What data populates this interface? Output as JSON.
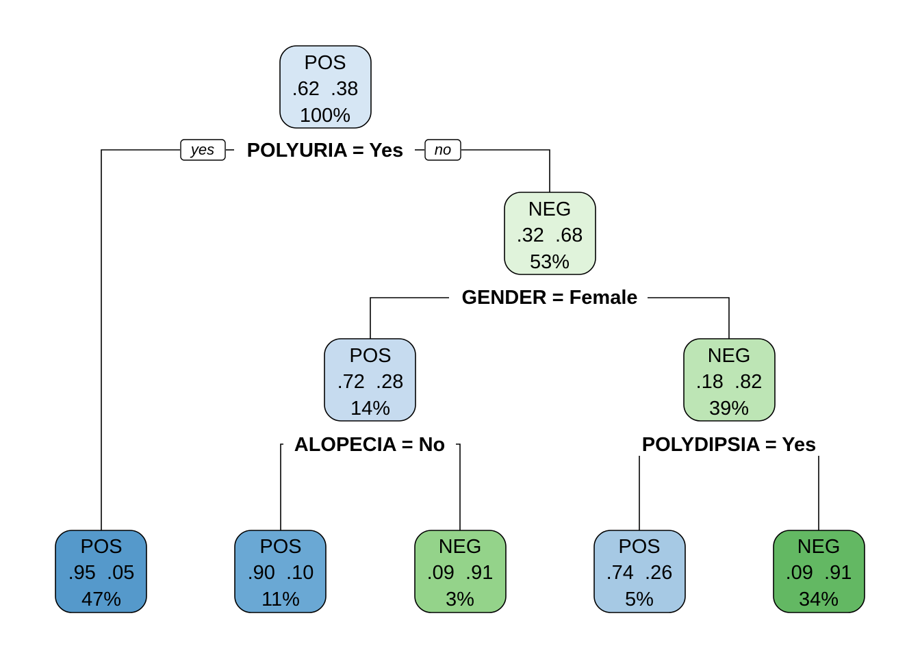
{
  "colors": {
    "pos_levels": [
      "#d6e6f4",
      "#c6dbef",
      "#a6c9e4",
      "#6aa8d4",
      "#5599cb"
    ],
    "neg_levels": [
      "#e0f3db",
      "#bde5b5",
      "#94d38a",
      "#63b863"
    ]
  },
  "root": {
    "label": "POS",
    "probs": ".62  .38",
    "pct": "100%",
    "split": "POLYURIA = Yes",
    "branch_yes": "yes",
    "branch_no": "no"
  },
  "nodes": {
    "leaf_1": {
      "label": "POS",
      "probs": ".95  .05",
      "pct": "47%"
    },
    "n_right": {
      "label": "NEG",
      "probs": ".32  .68",
      "pct": "53%",
      "split": "GENDER = Female"
    },
    "n_female": {
      "label": "POS",
      "probs": ".72  .28",
      "pct": "14%",
      "split": "ALOPECIA = No"
    },
    "n_male": {
      "label": "NEG",
      "probs": ".18  .82",
      "pct": "39%",
      "split": "POLYDIPSIA = Yes"
    },
    "leaf_2": {
      "label": "POS",
      "probs": ".90  .10",
      "pct": "11%"
    },
    "leaf_3": {
      "label": "NEG",
      "probs": ".09  .91",
      "pct": "3%"
    },
    "leaf_4": {
      "label": "POS",
      "probs": ".74  .26",
      "pct": "5%"
    },
    "leaf_5": {
      "label": "NEG",
      "probs": ".09  .91",
      "pct": "34%"
    }
  }
}
